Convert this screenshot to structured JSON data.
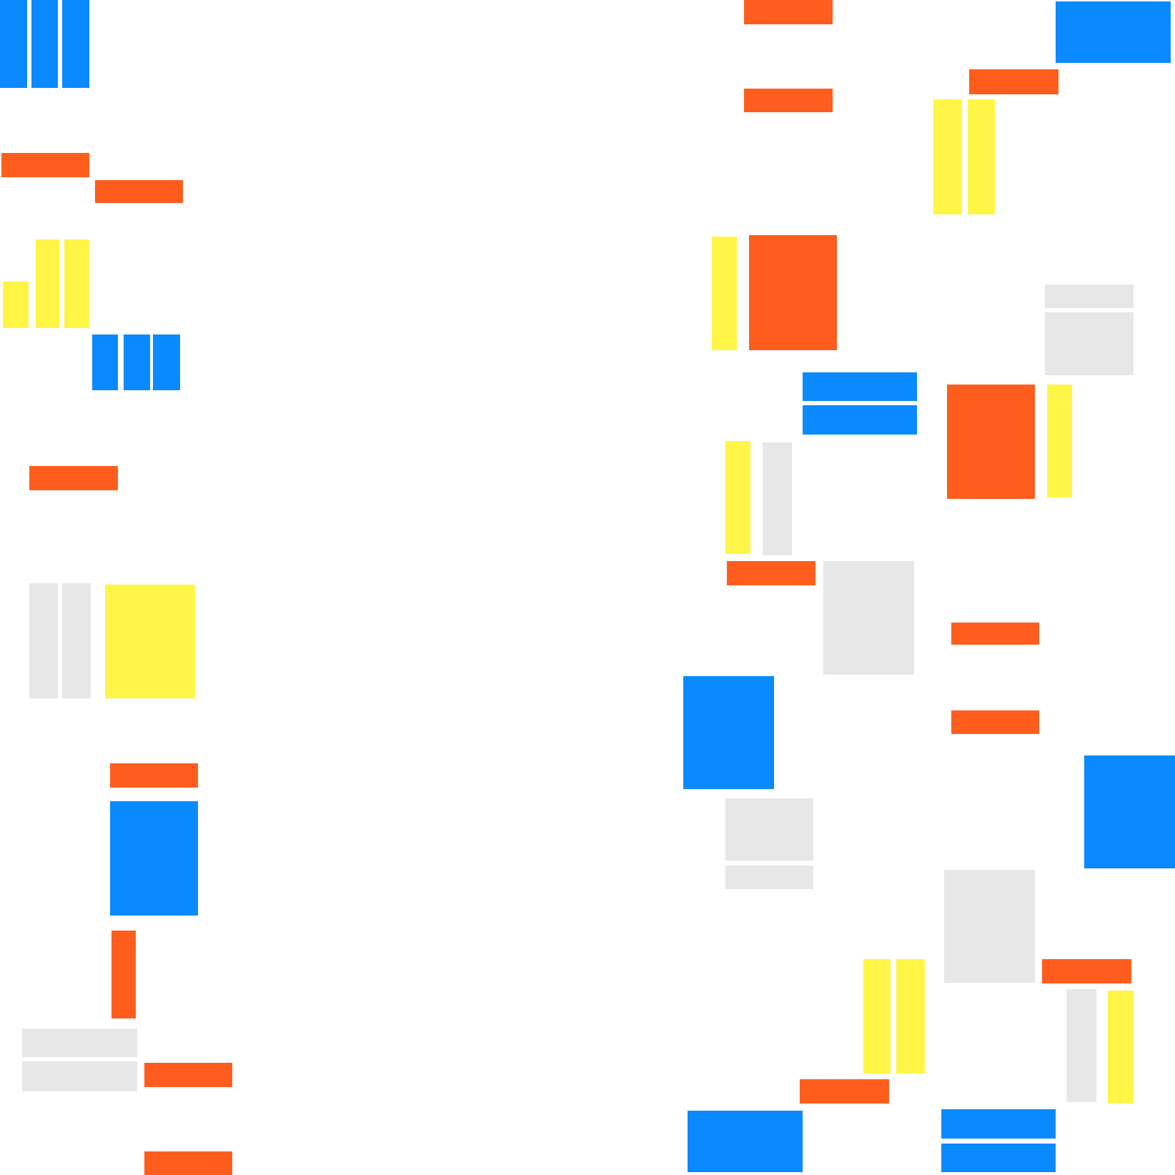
{
  "palette": {
    "background": "#ffffff",
    "blue": "#0a8afe",
    "orange": "#ff5d1e",
    "yellow": "#fff546",
    "gray": "#e7e7e7"
  }
}
